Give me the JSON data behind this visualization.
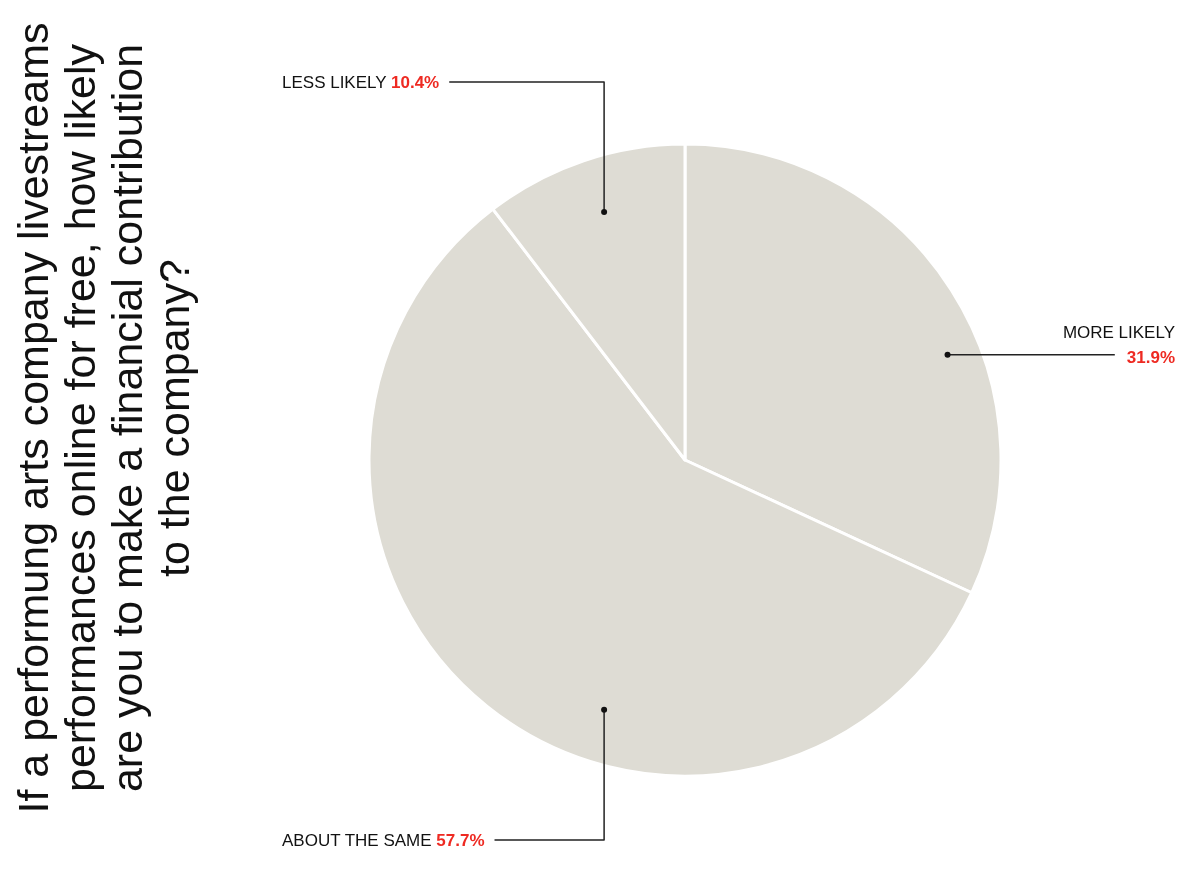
{
  "chart_data": {
    "type": "pie",
    "title": "If a performung arts company livestreams\nperformances online for free, how likely\nare you to make a financial contribution\nto the company?",
    "categories": [
      "MORE LIKELY",
      "ABOUT THE SAME",
      "LESS LIKELY"
    ],
    "values": [
      31.9,
      57.7,
      10.4
    ],
    "colors": [
      "#dedcd4",
      "#dedcd4",
      "#dedcd4"
    ],
    "value_labels": [
      "31.9%",
      "57.7%",
      "10.4%"
    ]
  }
}
